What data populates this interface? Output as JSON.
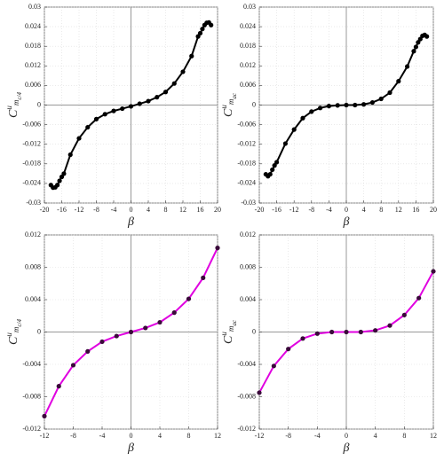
{
  "chart_data": [
    {
      "type": "line",
      "xlabel": "β",
      "ylabel": [
        "C",
        "u",
        "m",
        "c/4"
      ],
      "x": [
        -18.5,
        -18,
        -17.5,
        -17,
        -16.5,
        -16,
        -15.5,
        -14,
        -12,
        -10,
        -8,
        -6,
        -4,
        -2,
        0,
        2,
        4,
        6,
        8,
        10,
        12,
        14,
        15.5,
        16,
        16.5,
        17,
        17.5,
        18,
        18.5
      ],
      "series": [
        {
          "color": "#000000",
          "marker_color": "#000000",
          "values": [
            -0.0245,
            -0.0253,
            -0.0252,
            -0.0245,
            -0.0232,
            -0.022,
            -0.021,
            -0.0152,
            -0.0102,
            -0.0068,
            -0.0043,
            -0.0028,
            -0.0018,
            -0.0011,
            -0.0004,
            0.0004,
            0.0012,
            0.0024,
            0.004,
            0.0066,
            0.0102,
            0.015,
            0.021,
            0.022,
            0.0233,
            0.0245,
            0.0252,
            0.0253,
            0.0245
          ]
        }
      ],
      "xlim": [
        -20,
        20
      ],
      "xticks": [
        -20,
        -16,
        -12,
        -8,
        -4,
        0,
        4,
        8,
        12,
        16,
        20
      ],
      "ylim": [
        -0.03,
        0.03
      ],
      "yticks": [
        -0.03,
        -0.024,
        -0.018,
        -0.012,
        -0.006,
        0,
        0.006,
        0.012,
        0.018,
        0.024,
        0.03
      ],
      "grid": true
    },
    {
      "type": "line",
      "xlabel": "β",
      "ylabel": [
        "C",
        "u",
        "m",
        "ac"
      ],
      "x": [
        -18.5,
        -18,
        -17.5,
        -17,
        -16.5,
        -16,
        -14,
        -12,
        -10,
        -8,
        -6,
        -4,
        -2,
        0,
        2,
        4,
        6,
        8,
        10,
        12,
        14,
        15.5,
        16,
        16.5,
        17,
        17.5,
        18,
        18.5
      ],
      "series": [
        {
          "color": "#000000",
          "marker_color": "#000000",
          "values": [
            -0.0212,
            -0.0218,
            -0.0212,
            -0.0198,
            -0.0185,
            -0.0175,
            -0.0118,
            -0.0075,
            -0.004,
            -0.002,
            -0.0009,
            -0.0003,
            -0.0001,
            0,
            0,
            0.0002,
            0.0008,
            0.0019,
            0.0038,
            0.0073,
            0.0118,
            0.0165,
            0.0178,
            0.0192,
            0.0202,
            0.0212,
            0.0215,
            0.021
          ]
        }
      ],
      "xlim": [
        -20,
        20
      ],
      "xticks": [
        -20,
        -16,
        -12,
        -8,
        -4,
        0,
        4,
        8,
        12,
        16,
        20
      ],
      "ylim": [
        -0.03,
        0.03
      ],
      "yticks": [
        -0.03,
        -0.024,
        -0.018,
        -0.012,
        -0.006,
        0,
        0.006,
        0.012,
        0.018,
        0.024,
        0.03
      ],
      "grid": true
    },
    {
      "type": "line",
      "xlabel": "β",
      "ylabel": [
        "C",
        "u",
        "m",
        "c/4"
      ],
      "x": [
        -12,
        -10,
        -8,
        -6,
        -4,
        -2,
        0,
        2,
        4,
        6,
        8,
        10,
        12
      ],
      "series": [
        {
          "color": "#e000e0",
          "marker_color": "#3a0a3a",
          "values": [
            -0.0104,
            -0.0067,
            -0.0041,
            -0.0024,
            -0.0012,
            -0.0005,
            0,
            0.0005,
            0.0012,
            0.0024,
            0.0041,
            0.0067,
            0.0104
          ]
        }
      ],
      "xlim": [
        -12,
        12
      ],
      "xticks": [
        -12,
        -8,
        -4,
        0,
        4,
        8,
        12
      ],
      "ylim": [
        -0.012,
        0.012
      ],
      "yticks": [
        -0.012,
        -0.008,
        -0.004,
        0,
        0.004,
        0.008,
        0.012
      ],
      "grid": true
    },
    {
      "type": "line",
      "xlabel": "β",
      "ylabel": [
        "C",
        "u",
        "m",
        "ac"
      ],
      "x": [
        -12,
        -10,
        -8,
        -6,
        -4,
        -2,
        0,
        2,
        4,
        6,
        8,
        10,
        12
      ],
      "series": [
        {
          "color": "#e000e0",
          "marker_color": "#3a0a3a",
          "values": [
            -0.0075,
            -0.0042,
            -0.0021,
            -0.0008,
            -0.0002,
            0,
            0,
            0,
            0.0002,
            0.0008,
            0.0021,
            0.0042,
            0.0075
          ]
        }
      ],
      "xlim": [
        -12,
        12
      ],
      "xticks": [
        -12,
        -8,
        -4,
        0,
        4,
        8,
        12
      ],
      "ylim": [
        -0.012,
        0.012
      ],
      "yticks": [
        -0.012,
        -0.008,
        -0.004,
        0,
        0.004,
        0.008,
        0.012
      ],
      "grid": true
    }
  ]
}
